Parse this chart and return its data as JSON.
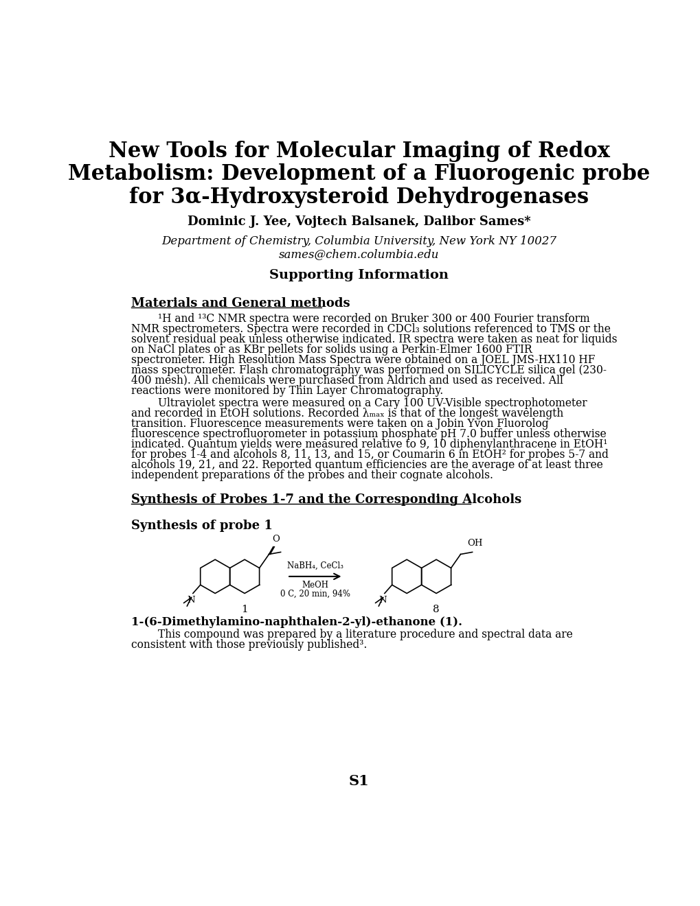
{
  "background_color": "#ffffff",
  "title_line1": "New Tools for Molecular Imaging of Redox",
  "title_line2": "Metabolism: Development of a Fluorogenic probe",
  "title_line3": "for 3α-Hydroxysteroid Dehydrogenases",
  "authors": "Dominic J. Yee, Vojtech Balsanek, Dalibor Sames*",
  "affiliation1": "Department of Chemistry, Columbia University, New York NY 10027",
  "affiliation2": "sames@chem.columbia.edu",
  "section_si": "Supporting Information",
  "section1_title": "Materials and General methods",
  "section2_title": "Synthesis of Probes 1-7 and the Corresponding Alcohols",
  "section3_title": "Synthesis of probe 1",
  "reaction_above": "NaBH₄, CeCl₃",
  "reaction_below1": "MeOH",
  "reaction_below2": "0 C, 20 min, 94%",
  "compound1_label": "1",
  "compound2_label": "8",
  "compound_name_bold": "1-(6-Dimethylamino-naphthalen-2-yl)-ethanone (1).",
  "compound_desc": "        This compound was prepared by a literature procedure and spectral data are consistent with those previously published³.",
  "page_number": "S1"
}
